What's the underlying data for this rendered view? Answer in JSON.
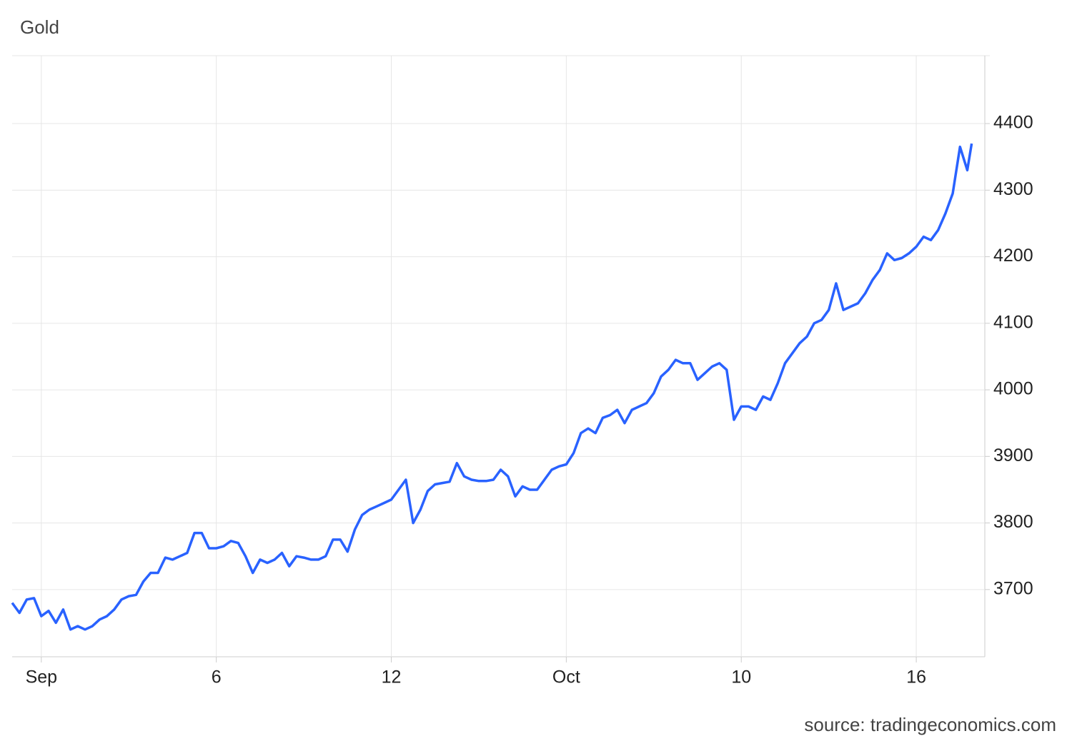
{
  "chart_data": {
    "type": "line",
    "title": "Gold",
    "source": "source: tradingeconomics.com",
    "xlim": [
      -1,
      32.35
    ],
    "ylim": [
      3599,
      4502
    ],
    "xticks": [
      {
        "value": 0,
        "label": "Sep"
      },
      6,
      12,
      {
        "value": 18,
        "label": "Oct"
      },
      {
        "value": 24,
        "label": "10"
      },
      {
        "value": 30,
        "label": "16"
      }
    ],
    "yticks": [
      3700,
      3800,
      3900,
      4000,
      4100,
      4200,
      4300,
      4400
    ],
    "grid": true,
    "x": [
      -1,
      -0.75,
      -0.5,
      -0.25,
      0,
      0.25,
      0.5,
      0.75,
      1,
      1.25,
      1.5,
      1.75,
      2,
      2.25,
      2.5,
      2.75,
      3,
      3.25,
      3.5,
      3.75,
      4,
      4.25,
      4.5,
      4.75,
      5,
      5.25,
      5.5,
      5.75,
      6,
      6.25,
      6.5,
      6.75,
      7,
      7.25,
      7.5,
      7.75,
      8,
      8.25,
      8.5,
      8.75,
      9,
      9.25,
      9.5,
      9.75,
      10,
      10.25,
      10.5,
      10.75,
      11,
      11.25,
      11.5,
      11.75,
      12,
      12.25,
      12.5,
      12.75,
      13,
      13.25,
      13.5,
      13.75,
      14,
      14.25,
      14.5,
      14.75,
      15,
      15.25,
      15.5,
      15.75,
      16,
      16.25,
      16.5,
      16.75,
      17,
      17.25,
      17.5,
      17.75,
      18,
      18.25,
      18.5,
      18.75,
      19,
      19.25,
      19.5,
      19.75,
      20,
      20.25,
      20.5,
      20.75,
      21,
      21.25,
      21.5,
      21.75,
      22,
      22.25,
      22.5,
      22.75,
      23,
      23.25,
      23.5,
      23.75,
      24,
      24.25,
      24.5,
      24.75,
      25,
      25.25,
      25.5,
      25.75,
      26,
      26.25,
      26.5,
      26.75,
      27,
      27.25,
      27.5,
      27.75,
      28,
      28.25,
      28.5,
      28.75,
      29,
      29.25,
      29.5,
      29.75,
      30,
      30.25,
      30.5,
      30.75,
      31,
      31.25,
      31.5,
      31.75,
      31.9
    ],
    "series": [
      {
        "name": "Gold",
        "color": "#2962ff",
        "values": [
          3680,
          3665,
          3685,
          3687,
          3660,
          3668,
          3650,
          3670,
          3640,
          3645,
          3640,
          3645,
          3655,
          3660,
          3670,
          3685,
          3690,
          3692,
          3712,
          3725,
          3725,
          3748,
          3745,
          3750,
          3755,
          3785,
          3785,
          3762,
          3762,
          3765,
          3773,
          3770,
          3750,
          3725,
          3745,
          3740,
          3745,
          3755,
          3735,
          3750,
          3748,
          3745,
          3745,
          3750,
          3775,
          3775,
          3757,
          3790,
          3812,
          3820,
          3825,
          3830,
          3835,
          3850,
          3865,
          3800,
          3820,
          3848,
          3858,
          3860,
          3862,
          3890,
          3870,
          3865,
          3863,
          3863,
          3865,
          3880,
          3870,
          3840,
          3855,
          3850,
          3850,
          3865,
          3880,
          3885,
          3888,
          3905,
          3935,
          3942,
          3935,
          3958,
          3962,
          3970,
          3950,
          3970,
          3975,
          3980,
          3995,
          4020,
          4030,
          4045,
          4040,
          4040,
          4015,
          4025,
          4035,
          4040,
          4030,
          3955,
          3975,
          3975,
          3970,
          3990,
          3985,
          4010,
          4040,
          4055,
          4070,
          4080,
          4100,
          4105,
          4120,
          4160,
          4120,
          4125,
          4130,
          4145,
          4165,
          4180,
          4205,
          4195,
          4198,
          4205,
          4215,
          4230,
          4225,
          4240,
          4265,
          4295,
          4365,
          4330,
          4370
        ]
      }
    ]
  }
}
